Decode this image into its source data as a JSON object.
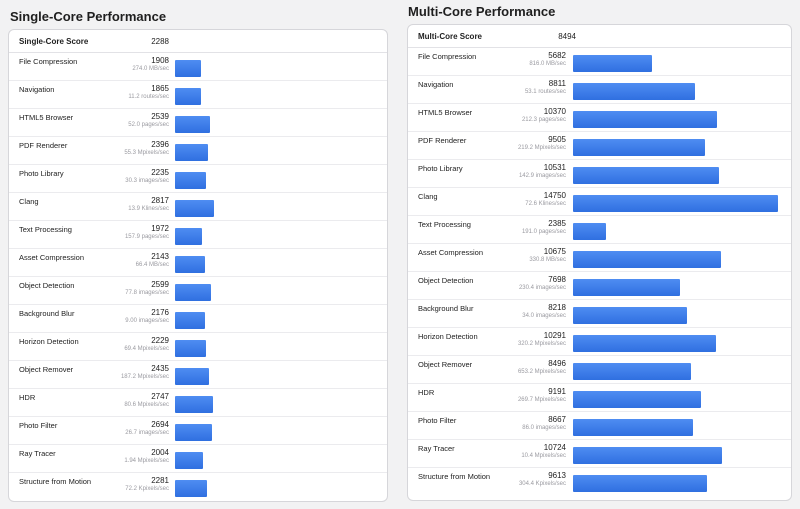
{
  "single": {
    "title": "Single-Core Performance",
    "score_label": "Single-Core Score",
    "score_value": "2288",
    "bar_max": 2817,
    "tests": [
      {
        "name": "File Compression",
        "score": 1908,
        "rate": "274.0 MB/sec"
      },
      {
        "name": "Navigation",
        "score": 1865,
        "rate": "11.2 routes/sec"
      },
      {
        "name": "HTML5 Browser",
        "score": 2539,
        "rate": "52.0 pages/sec"
      },
      {
        "name": "PDF Renderer",
        "score": 2396,
        "rate": "55.3 Mpixels/sec"
      },
      {
        "name": "Photo Library",
        "score": 2235,
        "rate": "30.3 images/sec"
      },
      {
        "name": "Clang",
        "score": 2817,
        "rate": "13.9 Klines/sec"
      },
      {
        "name": "Text Processing",
        "score": 1972,
        "rate": "157.9 pages/sec"
      },
      {
        "name": "Asset Compression",
        "score": 2143,
        "rate": "66.4 MB/sec"
      },
      {
        "name": "Object Detection",
        "score": 2599,
        "rate": "77.8 images/sec"
      },
      {
        "name": "Background Blur",
        "score": 2176,
        "rate": "9.00 images/sec"
      },
      {
        "name": "Horizon Detection",
        "score": 2229,
        "rate": "69.4 Mpixels/sec"
      },
      {
        "name": "Object Remover",
        "score": 2435,
        "rate": "187.2 Mpixels/sec"
      },
      {
        "name": "HDR",
        "score": 2747,
        "rate": "80.6 Mpixels/sec"
      },
      {
        "name": "Photo Filter",
        "score": 2694,
        "rate": "26.7 images/sec"
      },
      {
        "name": "Ray Tracer",
        "score": 2004,
        "rate": "1.94 Mpixels/sec"
      },
      {
        "name": "Structure from Motion",
        "score": 2281,
        "rate": "72.2 Kpixels/sec"
      }
    ]
  },
  "multi": {
    "title": "Multi-Core Performance",
    "score_label": "Multi-Core Score",
    "score_value": "8494",
    "bar_max": 14750,
    "tests": [
      {
        "name": "File Compression",
        "score": 5682,
        "rate": "816.0 MB/sec"
      },
      {
        "name": "Navigation",
        "score": 8811,
        "rate": "53.1 routes/sec"
      },
      {
        "name": "HTML5 Browser",
        "score": 10370,
        "rate": "212.3 pages/sec"
      },
      {
        "name": "PDF Renderer",
        "score": 9505,
        "rate": "219.2 Mpixels/sec"
      },
      {
        "name": "Photo Library",
        "score": 10531,
        "rate": "142.9 images/sec"
      },
      {
        "name": "Clang",
        "score": 14750,
        "rate": "72.6 Klines/sec"
      },
      {
        "name": "Text Processing",
        "score": 2385,
        "rate": "191.0 pages/sec"
      },
      {
        "name": "Asset Compression",
        "score": 10675,
        "rate": "330.8 MB/sec"
      },
      {
        "name": "Object Detection",
        "score": 7698,
        "rate": "230.4 images/sec"
      },
      {
        "name": "Background Blur",
        "score": 8218,
        "rate": "34.0 images/sec"
      },
      {
        "name": "Horizon Detection",
        "score": 10291,
        "rate": "320.2 Mpixels/sec"
      },
      {
        "name": "Object Remover",
        "score": 8496,
        "rate": "653.2 Mpixels/sec"
      },
      {
        "name": "HDR",
        "score": 9191,
        "rate": "269.7 Mpixels/sec"
      },
      {
        "name": "Photo Filter",
        "score": 8667,
        "rate": "86.0 images/sec"
      },
      {
        "name": "Ray Tracer",
        "score": 10724,
        "rate": "10.4 Mpixels/sec"
      },
      {
        "name": "Structure from Motion",
        "score": 9613,
        "rate": "304.4 Kpixels/sec"
      }
    ]
  }
}
